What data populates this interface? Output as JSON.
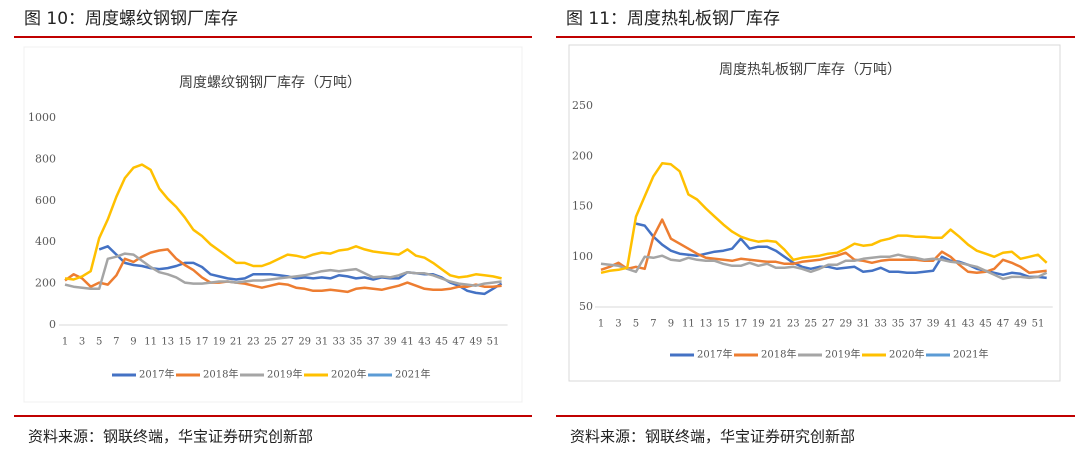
{
  "figures": [
    {
      "caption": "图 10：周度螺纹钢钢厂库存",
      "source": "资料来源：钢联终端，华宝证券研究创新部"
    },
    {
      "caption": "图 11：周度热轧板钢厂库存",
      "source": "资料来源：钢联终端，华宝证券研究创新部"
    }
  ],
  "chart_data": [
    {
      "type": "line",
      "title": "周度螺纹钢钢厂库存（万吨）",
      "categories": [
        1,
        null,
        3,
        null,
        5,
        null,
        7,
        null,
        9,
        null,
        11,
        null,
        13,
        null,
        15,
        null,
        17,
        null,
        19,
        null,
        21,
        null,
        23,
        null,
        25,
        null,
        27,
        null,
        29,
        null,
        31,
        null,
        33,
        null,
        35,
        null,
        37,
        null,
        39,
        null,
        41,
        null,
        43,
        null,
        45,
        null,
        47,
        null,
        49,
        null,
        51,
        null
      ],
      "ylim": [
        0,
        1000
      ],
      "yticks": [
        0,
        200,
        400,
        600,
        800,
        1000
      ],
      "grid": false,
      "series": [
        {
          "name": "2017年",
          "color": "#4472c4",
          "values": [
            null,
            null,
            null,
            null,
            365,
            380,
            340,
            300,
            290,
            285,
            275,
            270,
            275,
            285,
            300,
            300,
            280,
            245,
            235,
            225,
            220,
            225,
            245,
            245,
            245,
            240,
            235,
            225,
            230,
            225,
            230,
            225,
            240,
            235,
            225,
            230,
            220,
            230,
            225,
            225,
            255,
            250,
            245,
            245,
            230,
            205,
            190,
            165,
            155,
            150,
            175,
            200
          ]
        },
        {
          "name": "2018年",
          "color": "#ed7d31",
          "values": [
            215,
            245,
            225,
            185,
            205,
            195,
            240,
            320,
            305,
            330,
            350,
            360,
            365,
            320,
            290,
            265,
            230,
            205,
            205,
            210,
            205,
            200,
            190,
            180,
            190,
            200,
            195,
            180,
            175,
            165,
            165,
            170,
            165,
            160,
            175,
            180,
            175,
            170,
            180,
            190,
            205,
            190,
            175,
            170,
            170,
            175,
            185,
            185,
            195,
            185,
            185,
            190
          ]
        },
        {
          "name": "2019年",
          "color": "#a5a5a5",
          "values": [
            195,
            185,
            180,
            175,
            175,
            320,
            330,
            345,
            340,
            310,
            280,
            255,
            245,
            230,
            205,
            200,
            200,
            205,
            210,
            210,
            205,
            210,
            215,
            215,
            220,
            225,
            230,
            235,
            240,
            250,
            260,
            265,
            260,
            265,
            270,
            250,
            230,
            235,
            230,
            240,
            255,
            250,
            250,
            240,
            225,
            210,
            200,
            195,
            190,
            200,
            205,
            210
          ]
        },
        {
          "name": "2020年",
          "color": "#ffc000",
          "values": [
            225,
            220,
            235,
            260,
            420,
            510,
            620,
            710,
            760,
            775,
            750,
            660,
            610,
            570,
            520,
            460,
            430,
            390,
            360,
            330,
            300,
            300,
            285,
            285,
            300,
            320,
            340,
            335,
            325,
            340,
            350,
            345,
            360,
            365,
            380,
            365,
            355,
            350,
            345,
            340,
            365,
            335,
            325,
            300,
            270,
            240,
            230,
            235,
            245,
            240,
            235,
            225
          ]
        },
        {
          "name": "2021年",
          "color": "#5b9bd5",
          "values": [
            null,
            null,
            null,
            null,
            null,
            null,
            null,
            null,
            null,
            null,
            null,
            null,
            null,
            null,
            null,
            null,
            null,
            null,
            null,
            null,
            null,
            null,
            null,
            null,
            null,
            null,
            null,
            null,
            null,
            null,
            null,
            null,
            null,
            null,
            null,
            null,
            null,
            null,
            null,
            null,
            null,
            null,
            null,
            null,
            null,
            null,
            null,
            null,
            null,
            null,
            null,
            null
          ]
        }
      ]
    },
    {
      "type": "line",
      "title": "周度热轧板钢厂库存（万吨）",
      "categories": [
        1,
        null,
        3,
        null,
        5,
        null,
        7,
        null,
        9,
        null,
        11,
        null,
        13,
        null,
        15,
        null,
        17,
        null,
        19,
        null,
        21,
        null,
        23,
        null,
        25,
        null,
        27,
        null,
        29,
        null,
        31,
        null,
        33,
        null,
        35,
        null,
        37,
        null,
        39,
        null,
        41,
        null,
        43,
        null,
        45,
        null,
        47,
        null,
        49,
        null,
        51,
        null
      ],
      "ylim": [
        50,
        250
      ],
      "yticks": [
        50,
        100,
        150,
        200,
        250
      ],
      "grid": false,
      "series": [
        {
          "name": "2017年",
          "color": "#4472c4",
          "values": [
            null,
            null,
            null,
            null,
            133,
            131,
            120,
            112,
            106,
            103,
            102,
            101,
            103,
            105,
            106,
            108,
            118,
            108,
            110,
            110,
            106,
            100,
            94,
            90,
            88,
            90,
            90,
            88,
            89,
            90,
            85,
            86,
            89,
            85,
            85,
            84,
            84,
            85,
            86,
            100,
            96,
            95,
            92,
            88,
            86,
            84,
            82,
            84,
            83,
            80,
            80,
            79
          ]
        },
        {
          "name": "2018年",
          "color": "#ed7d31",
          "values": [
            87,
            90,
            94,
            88,
            90,
            88,
            120,
            137,
            118,
            113,
            108,
            103,
            99,
            98,
            97,
            96,
            98,
            97,
            96,
            95,
            95,
            93,
            93,
            95,
            96,
            97,
            99,
            101,
            104,
            97,
            96,
            94,
            96,
            97,
            97,
            97,
            97,
            96,
            96,
            105,
            100,
            92,
            85,
            84,
            85,
            88,
            97,
            94,
            90,
            84,
            85,
            86
          ]
        },
        {
          "name": "2019年",
          "color": "#a5a5a5",
          "values": [
            93,
            92,
            91,
            88,
            85,
            100,
            99,
            101,
            97,
            96,
            99,
            97,
            96,
            96,
            93,
            91,
            91,
            94,
            91,
            93,
            89,
            89,
            90,
            88,
            85,
            88,
            92,
            92,
            96,
            96,
            98,
            99,
            100,
            100,
            102,
            100,
            99,
            97,
            98,
            97,
            95,
            94,
            92,
            90,
            86,
            82,
            78,
            80,
            80,
            79,
            80,
            84
          ]
        },
        {
          "name": "2020年",
          "color": "#ffc000",
          "values": [
            84,
            86,
            87,
            89,
            140,
            160,
            180,
            193,
            192,
            185,
            162,
            157,
            148,
            140,
            132,
            125,
            120,
            117,
            115,
            116,
            115,
            107,
            97,
            99,
            100,
            101,
            103,
            104,
            108,
            113,
            111,
            112,
            116,
            118,
            121,
            121,
            120,
            120,
            119,
            119,
            127,
            120,
            112,
            106,
            103,
            100,
            104,
            105,
            98,
            100,
            102,
            94
          ]
        },
        {
          "name": "2021年",
          "color": "#5b9bd5",
          "values": [
            null,
            null,
            null,
            null,
            null,
            null,
            null,
            null,
            null,
            null,
            null,
            null,
            null,
            null,
            null,
            null,
            null,
            null,
            null,
            null,
            null,
            null,
            null,
            null,
            null,
            null,
            null,
            null,
            null,
            null,
            null,
            null,
            null,
            null,
            null,
            null,
            null,
            null,
            null,
            null,
            null,
            null,
            null,
            null,
            null,
            null,
            null,
            null,
            null,
            null,
            null,
            null
          ]
        }
      ]
    }
  ]
}
